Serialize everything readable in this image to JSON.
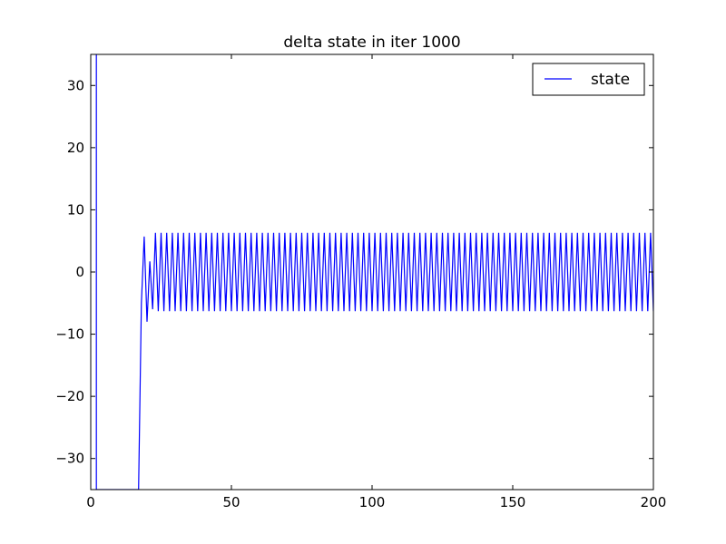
{
  "chart_data": {
    "type": "line",
    "title": "delta state in iter 1000",
    "xlabel": "",
    "ylabel": "",
    "xlim": [
      0,
      200
    ],
    "ylim": [
      -35,
      35
    ],
    "xticks": [
      0,
      50,
      100,
      150,
      200
    ],
    "xtick_labels": [
      "0",
      "50",
      "100",
      "150",
      "200"
    ],
    "yticks": [
      -30,
      -20,
      -10,
      0,
      10,
      20,
      30
    ],
    "ytick_labels": [
      "−30",
      "−20",
      "−10",
      "0",
      "10",
      "20",
      "30"
    ],
    "grid": false,
    "legend_position": "top-right",
    "series": [
      {
        "name": "state",
        "color": "#0000ff",
        "x": [
          2,
          2,
          17,
          18,
          19,
          20,
          21,
          22
        ],
        "y": [
          35,
          -35,
          -35,
          -5,
          5.7,
          -8,
          1.7,
          -6
        ],
        "periodic_tail": {
          "x_start": 23,
          "x_end": 200,
          "period": 2,
          "high": 6.3,
          "low": -6.3
        }
      }
    ]
  }
}
